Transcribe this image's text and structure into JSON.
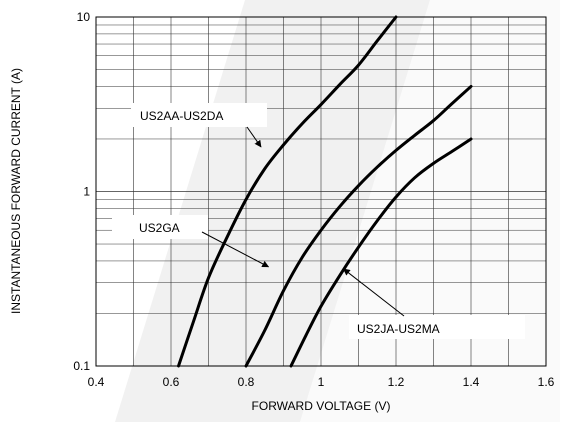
{
  "chart_data": {
    "type": "line",
    "xlabel": "FORWARD VOLTAGE (V)",
    "ylabel": "INSTANTANEOUS FORWARD CURRENT (A)",
    "xlim": [
      0.4,
      1.6
    ],
    "ylim": [
      0.1,
      10
    ],
    "yscale": "log",
    "grid": true,
    "xticks": [
      0.4,
      0.6,
      0.8,
      1,
      1.2,
      1.4,
      1.6
    ],
    "xtick_labels": [
      "0.4",
      "0.6",
      "0.8",
      "1",
      "1.2",
      "1.4",
      "1.6"
    ],
    "yticks": [
      0.1,
      1,
      10
    ],
    "ytick_labels": [
      "0.1",
      "1",
      "10"
    ],
    "series": [
      {
        "name": "US2AA-US2DA",
        "x": [
          0.62,
          0.66,
          0.7,
          0.75,
          0.8,
          0.85,
          0.9,
          0.95,
          1.0,
          1.05,
          1.1,
          1.15,
          1.2
        ],
        "y": [
          0.1,
          0.18,
          0.32,
          0.55,
          0.9,
          1.35,
          1.85,
          2.45,
          3.15,
          4.1,
          5.3,
          7.3,
          10.0
        ]
      },
      {
        "name": "US2GA",
        "x": [
          0.8,
          0.85,
          0.9,
          0.95,
          1.0,
          1.05,
          1.1,
          1.15,
          1.2,
          1.25,
          1.3,
          1.35,
          1.4
        ],
        "y": [
          0.1,
          0.16,
          0.27,
          0.42,
          0.6,
          0.82,
          1.08,
          1.38,
          1.72,
          2.1,
          2.55,
          3.2,
          4.0
        ]
      },
      {
        "name": "US2JA-US2MA",
        "x": [
          0.92,
          0.96,
          1.0,
          1.05,
          1.1,
          1.15,
          1.2,
          1.25,
          1.3,
          1.35,
          1.4
        ],
        "y": [
          0.1,
          0.15,
          0.22,
          0.33,
          0.48,
          0.68,
          0.93,
          1.2,
          1.45,
          1.7,
          2.0
        ]
      }
    ],
    "annotations": [
      {
        "text": "US2AA-US2DA",
        "target_series": 0,
        "target_x": 0.84,
        "target_y": 1.8
      },
      {
        "text": "US2GA",
        "target_series": 1,
        "target_x": 0.86,
        "target_y": 0.37
      },
      {
        "text": "US2JA-US2MA",
        "target_series": 2,
        "target_x": 1.06,
        "target_y": 0.36
      }
    ]
  },
  "colors": {
    "line": "#000000",
    "grid": "#333333",
    "watermark": "#ececec"
  }
}
